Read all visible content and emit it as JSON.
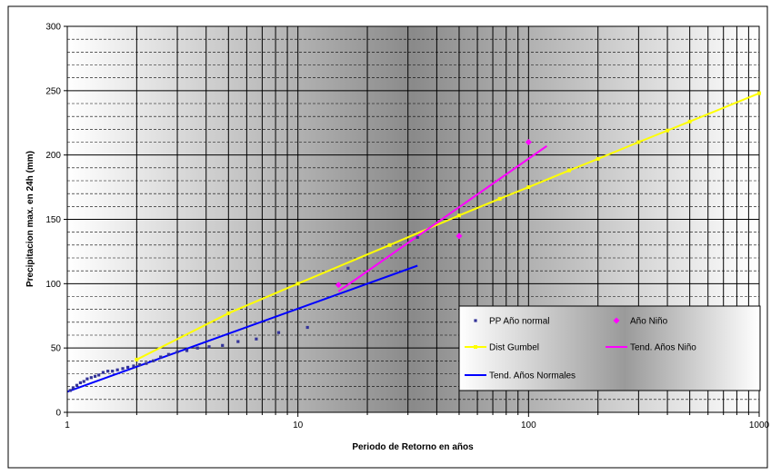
{
  "chart_data": {
    "type": "scatter",
    "xscale": "log",
    "xlim": [
      1,
      1000
    ],
    "ylim": [
      0,
      300
    ],
    "x_ticks": [
      1,
      10,
      100,
      1000
    ],
    "x_tick_labels": [
      "1",
      "10",
      "100",
      "1000"
    ],
    "y_ticks": [
      0,
      50,
      100,
      150,
      200,
      250,
      300
    ],
    "y_tick_labels": [
      "0",
      "50",
      "100",
      "150",
      "200",
      "250",
      "300"
    ],
    "xlabel": "Periodo de Retorno en años",
    "ylabel": "Precipitacion max. en 24h (mm)",
    "grid": true,
    "legend_position": "lower-right",
    "series": [
      {
        "name": "PP Año normal",
        "kind": "markers",
        "marker": "square",
        "color": "#333399",
        "points": [
          [
            1.03,
            17
          ],
          [
            1.06,
            19
          ],
          [
            1.1,
            21
          ],
          [
            1.14,
            23
          ],
          [
            1.18,
            24
          ],
          [
            1.22,
            26
          ],
          [
            1.27,
            27
          ],
          [
            1.32,
            28
          ],
          [
            1.37,
            29
          ],
          [
            1.43,
            31
          ],
          [
            1.5,
            32
          ],
          [
            1.57,
            32
          ],
          [
            1.65,
            33
          ],
          [
            1.74,
            34
          ],
          [
            1.83,
            35
          ],
          [
            1.94,
            36
          ],
          [
            2.06,
            37
          ],
          [
            2.2,
            38
          ],
          [
            2.36,
            40
          ],
          [
            2.54,
            43
          ],
          [
            2.75,
            45
          ],
          [
            3.0,
            47
          ],
          [
            3.3,
            48
          ],
          [
            3.67,
            50
          ],
          [
            4.12,
            51
          ],
          [
            4.71,
            52
          ],
          [
            5.5,
            55
          ],
          [
            6.6,
            57
          ],
          [
            8.25,
            62
          ],
          [
            11.0,
            66
          ],
          [
            16.5,
            112
          ],
          [
            33.0,
            136
          ]
        ]
      },
      {
        "name": "Año Niño",
        "kind": "markers",
        "marker": "diamond",
        "color": "#ff00ff",
        "points": [
          [
            15,
            99
          ],
          [
            50,
            137
          ],
          [
            100,
            210
          ]
        ]
      },
      {
        "name": "Dist Gumbel",
        "kind": "line",
        "color": "#ffff00",
        "marker": "square",
        "points": [
          [
            2,
            41
          ],
          [
            5,
            77
          ],
          [
            10,
            100
          ],
          [
            25,
            130
          ],
          [
            50,
            153
          ],
          [
            75,
            166
          ],
          [
            100,
            175
          ],
          [
            150,
            188
          ],
          [
            200,
            197
          ],
          [
            300,
            210
          ],
          [
            400,
            219
          ],
          [
            500,
            226
          ],
          [
            1000,
            248
          ]
        ]
      },
      {
        "name": "Tend. Años Niño",
        "kind": "line",
        "color": "#ff00ff",
        "points": [
          [
            15,
            94
          ],
          [
            120,
            207
          ]
        ]
      },
      {
        "name": "Tend. Años Normales",
        "kind": "line",
        "color": "#0000ff",
        "points": [
          [
            1,
            16
          ],
          [
            33,
            114
          ]
        ]
      }
    ]
  }
}
